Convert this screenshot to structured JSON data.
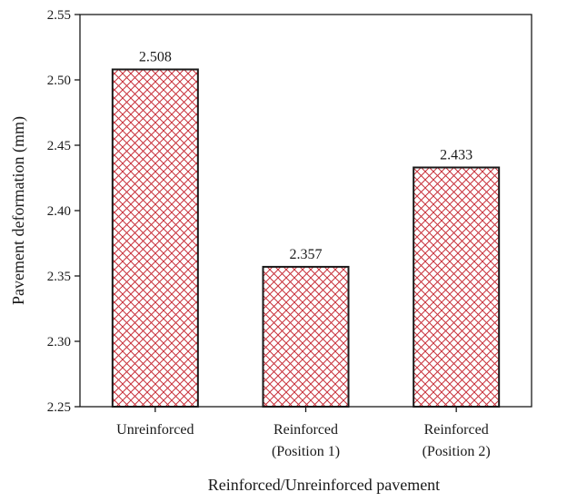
{
  "chart_data": {
    "type": "bar",
    "title": "",
    "xlabel": "Reinforced/Unreinforced pavement",
    "ylabel": "Pavement deformation (mm)",
    "categories": [
      [
        "Unreinforced"
      ],
      [
        "Reinforced",
        "(Position 1)"
      ],
      [
        "Reinforced",
        "(Position 2)"
      ]
    ],
    "values": [
      2.508,
      2.357,
      2.433
    ],
    "value_labels": [
      "2.508",
      "2.357",
      "2.433"
    ],
    "ylim": [
      2.25,
      2.55
    ],
    "yticks": [
      2.25,
      2.3,
      2.35,
      2.4,
      2.45,
      2.5,
      2.55
    ],
    "ytick_labels": [
      "2.25",
      "2.30",
      "2.35",
      "2.40",
      "2.45",
      "2.50",
      "2.55"
    ],
    "grid": false,
    "legend": "none",
    "bar_fill": "crosshatch",
    "colors": {
      "hatch": "#c8323c",
      "bar_outline": "#1a1a1a",
      "axis": "#1a1a1a"
    }
  }
}
